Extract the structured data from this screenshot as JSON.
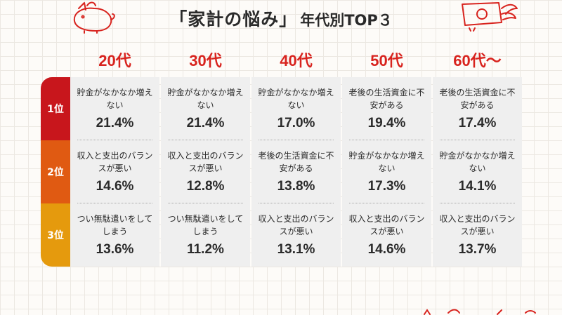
{
  "title": {
    "main": "「家計の悩み」",
    "sub": "年代別TOP３"
  },
  "columns": [
    "20代",
    "30代",
    "40代",
    "50代",
    "60代～"
  ],
  "ranks": [
    "1位",
    "2位",
    "3位"
  ],
  "rows": [
    [
      {
        "text": "貯金がなかなか増えない",
        "value": "21.4%"
      },
      {
        "text": "貯金がなかなか増えない",
        "value": "21.4%"
      },
      {
        "text": "貯金がなかなか増えない",
        "value": "17.0%"
      },
      {
        "text": "老後の生活資金に不安がある",
        "value": "19.4%"
      },
      {
        "text": "老後の生活資金に不安がある",
        "value": "17.4%"
      }
    ],
    [
      {
        "text": "収入と支出のバランスが悪い",
        "value": "14.6%"
      },
      {
        "text": "収入と支出のバランスが悪い",
        "value": "12.8%"
      },
      {
        "text": "老後の生活資金に不安がある",
        "value": "13.8%"
      },
      {
        "text": "貯金がなかなか増えない",
        "value": "17.3%"
      },
      {
        "text": "貯金がなかなか増えない",
        "value": "14.1%"
      }
    ],
    [
      {
        "text": "つい無駄遣いをしてしまう",
        "value": "13.6%"
      },
      {
        "text": "つい無駄遣いをしてしまう",
        "value": "11.2%"
      },
      {
        "text": "収入と支出のバランスが悪い",
        "value": "13.1%"
      },
      {
        "text": "収入と支出のバランスが悪い",
        "value": "14.6%"
      },
      {
        "text": "収入と支出のバランスが悪い",
        "value": "13.7%"
      }
    ]
  ],
  "colors": {
    "accent": "#d8231e",
    "rank1": "#c8161c",
    "rank2": "#e05a12",
    "rank3": "#e59a0d",
    "cell": "#efefef"
  },
  "icons": [
    "piggy-bank-icon",
    "flying-money-icon"
  ]
}
